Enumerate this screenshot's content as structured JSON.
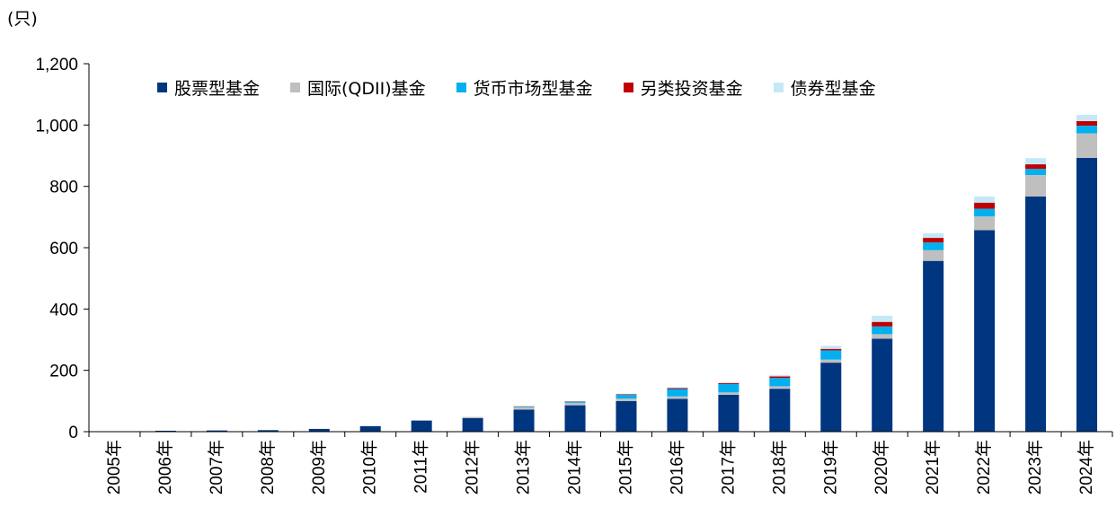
{
  "chart_data": {
    "type": "bar",
    "stacked": true,
    "unit_label": "(只)",
    "categories": [
      "2005年",
      "2006年",
      "2007年",
      "2008年",
      "2009年",
      "2010年",
      "2011年",
      "2012年",
      "2013年",
      "2014年",
      "2015年",
      "2016年",
      "2017年",
      "2018年",
      "2019年",
      "2020年",
      "2021年",
      "2022年",
      "2023年",
      "2024年"
    ],
    "ylim": [
      0,
      1200
    ],
    "yticks": [
      0,
      200,
      400,
      600,
      800,
      1000,
      1200
    ],
    "ytick_labels": [
      "0",
      "200",
      "400",
      "600",
      "800",
      "1,000",
      "1,200"
    ],
    "grid": false,
    "legend_position": "top",
    "series": [
      {
        "name": "股票型基金",
        "color": "#003580",
        "values": [
          1,
          3,
          4,
          5,
          9,
          18,
          36,
          44,
          72,
          86,
          100,
          107,
          120,
          140,
          225,
          303,
          557,
          657,
          767,
          893
        ]
      },
      {
        "name": "国际(QDII)基金",
        "color": "#bfbfbf",
        "values": [
          0,
          0,
          0,
          0,
          0,
          0,
          2,
          4,
          8,
          8,
          8,
          8,
          8,
          8,
          10,
          15,
          35,
          45,
          70,
          80
        ]
      },
      {
        "name": "货币市场型基金",
        "color": "#00b0f0",
        "values": [
          0,
          0,
          0,
          0,
          0,
          0,
          0,
          0,
          2,
          4,
          12,
          24,
          27,
          27,
          30,
          25,
          25,
          25,
          20,
          25
        ]
      },
      {
        "name": "另类投资基金",
        "color": "#c00000",
        "values": [
          0,
          0,
          0,
          0,
          0,
          0,
          0,
          0,
          1,
          1,
          2,
          3,
          3,
          5,
          5,
          15,
          15,
          20,
          15,
          15
        ]
      },
      {
        "name": "债券型基金",
        "color": "#c5e8f7",
        "values": [
          0,
          0,
          0,
          0,
          0,
          0,
          0,
          0,
          1,
          1,
          2,
          3,
          3,
          5,
          10,
          20,
          15,
          20,
          20,
          20
        ]
      }
    ]
  }
}
